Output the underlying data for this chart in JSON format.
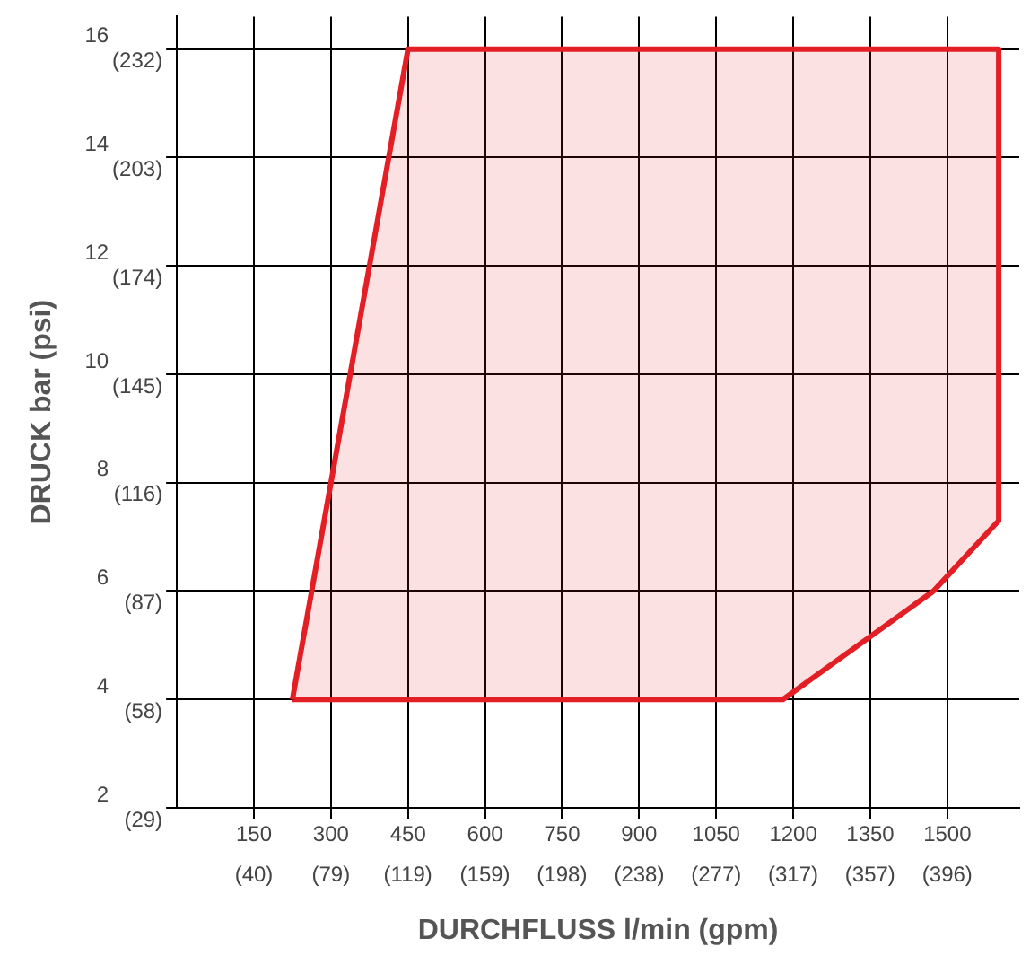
{
  "chart_data": {
    "type": "area",
    "xlabel": "DURCHFLUSS l/min (gpm)",
    "ylabel": "DRUCK bar (psi)",
    "x": [
      225,
      450,
      1600,
      1600,
      1473,
      1180,
      225
    ],
    "series": [
      {
        "color": "#e31e24",
        "values": [
          4,
          16,
          16,
          7.3,
          6,
          4,
          4
        ]
      }
    ],
    "xlim": [
      0,
      1640
    ],
    "ylim": [
      2,
      16.6
    ],
    "xticks": [
      150,
      300,
      450,
      600,
      750,
      900,
      1050,
      1200,
      1350,
      1500
    ],
    "yticks": [
      2,
      4,
      6,
      8,
      10,
      12,
      14,
      16
    ],
    "x2lim": [
      0,
      433.3
    ],
    "x2ticks": [
      {
        "value": 39.63,
        "label": "(40)"
      },
      {
        "value": 79.25,
        "label": "(79)"
      },
      {
        "value": 118.88,
        "label": "(119)"
      },
      {
        "value": 158.5,
        "label": "(159)"
      },
      {
        "value": 198.1,
        "label": "(198)"
      },
      {
        "value": 237.8,
        "label": "(238)"
      },
      {
        "value": 277.4,
        "label": "(277)"
      },
      {
        "value": 317.0,
        "label": "(317)"
      },
      {
        "value": 356.6,
        "label": "(357)"
      },
      {
        "value": 396.3,
        "label": "(396)"
      }
    ],
    "y2lim": [
      29.01,
      240.76
    ],
    "y2ticks": [
      {
        "value": 29.01,
        "label": "(29)"
      },
      {
        "value": 58.02,
        "label": "(58)"
      },
      {
        "value": 87.02,
        "label": "(87)"
      },
      {
        "value": 116.03,
        "label": "(116)"
      },
      {
        "value": 145.04,
        "label": "(145)"
      },
      {
        "value": 174.05,
        "label": "(174)"
      },
      {
        "value": 203.05,
        "label": "(203)"
      },
      {
        "value": 232.06,
        "label": "(232)"
      }
    ],
    "grid": true,
    "legend": false,
    "marker": "none",
    "line_style": "solid"
  }
}
